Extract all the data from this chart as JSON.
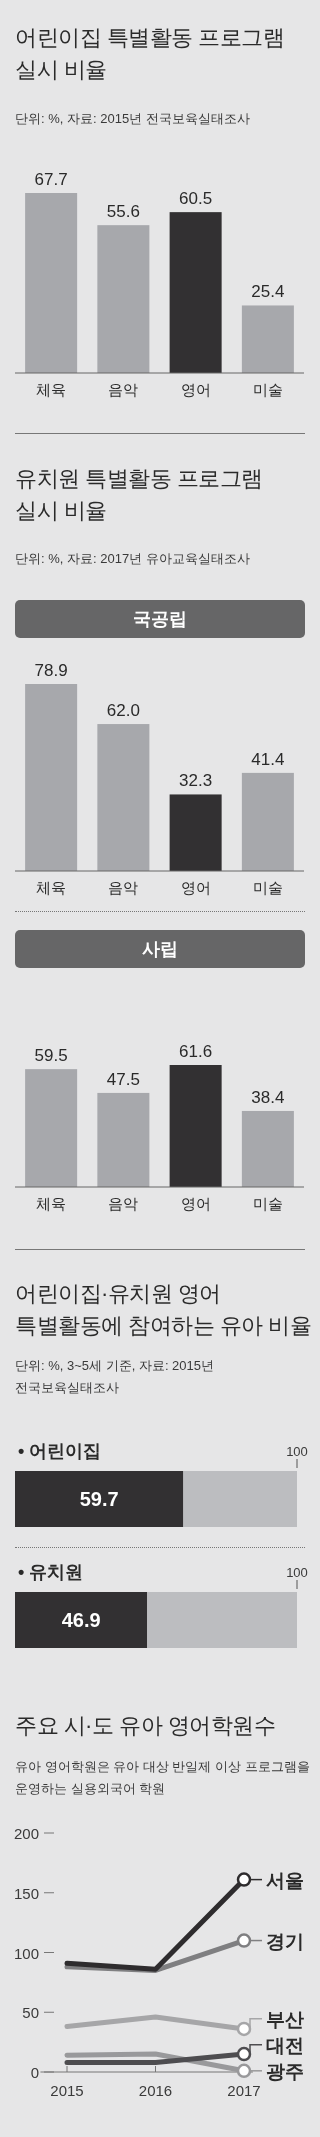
{
  "chart_data": [
    {
      "type": "bar",
      "title": "어린이집 특별활동 프로그램 실시 비율",
      "subtitle": "단위: %, 자료: 2015년 전국보육실태조사",
      "categories": [
        "체육",
        "음악",
        "영어",
        "미술"
      ],
      "values": [
        67.7,
        55.6,
        60.5,
        25.4
      ],
      "colors": [
        "#a7a8ac",
        "#a7a8ac",
        "#323032",
        "#a7a8ac"
      ],
      "data_labels": true
    },
    {
      "type": "bar",
      "title": "유치원 특별활동 프로그램 실시 비율",
      "subtitle": "단위: %, 자료: 2017년 유아교육실태조사",
      "annotations": [
        "국공립"
      ],
      "categories": [
        "체육",
        "음악",
        "영어",
        "미술"
      ],
      "values": [
        78.9,
        62.0,
        32.3,
        41.4
      ],
      "colors": [
        "#a7a8ac",
        "#a7a8ac",
        "#323032",
        "#a7a8ac"
      ],
      "value_labels": [
        "78.9",
        "62.0",
        "32.3",
        "41.4"
      ]
    },
    {
      "type": "bar",
      "title": "사립",
      "categories": [
        "체육",
        "음악",
        "영어",
        "미술"
      ],
      "values": [
        59.5,
        47.5,
        61.6,
        38.4
      ],
      "colors": [
        "#a7a8ac",
        "#a7a8ac",
        "#323032",
        "#a7a8ac"
      ],
      "data_labels": true
    },
    {
      "type": "bar",
      "orientation": "horizontal",
      "title": "어린이집·유치원 영어 특별활동에 참여하는 유아 비율",
      "subtitle": "단위: %, 3~5세 기준, 자료: 2015년 전국보육실태조사",
      "annotations": [
        "• 어린이집",
        "100"
      ],
      "categories": [
        null
      ],
      "stacked": true,
      "series": [
        {
          "color": "#323032",
          "values": [
            59.7
          ],
          "value_labels": [
            "59.7"
          ]
        },
        {
          "color": "#bcbdc0",
          "values": [
            40.3
          ]
        }
      ]
    },
    {
      "type": "bar",
      "orientation": "horizontal",
      "title": "• 유치원",
      "annotations": [
        "100"
      ],
      "categories": [
        null
      ],
      "stacked": true,
      "series": [
        {
          "color": "#323032",
          "values": [
            46.9
          ],
          "value_labels": [
            "46.9"
          ]
        },
        {
          "color": "#bcbdc0",
          "values": [
            53.1
          ]
        }
      ]
    },
    {
      "type": "line",
      "title": "주요 시·도 유아 영어학원수",
      "subtitle": "유아 영어학원은 유아 대상 반일제 이상 프로그램을 운영하는 실용외국어 학원",
      "x": [
        2015,
        2016,
        2017
      ],
      "xlim": [
        2014.7,
        2017.1
      ],
      "xticks": [
        2015,
        2016,
        2017
      ],
      "ylim": [
        0,
        200
      ],
      "yticks": [
        0,
        50,
        100,
        150,
        200
      ],
      "grid": false,
      "legend": "right",
      "line_style": "solid",
      "series": [
        {
          "name": "서울",
          "color": "#2e2c2e",
          "values": [
            91,
            86,
            161
          ]
        },
        {
          "name": "경기",
          "color": "#7f7f81",
          "values": [
            88,
            85,
            110
          ]
        },
        {
          "name": "부산",
          "color": "#a6a6a8",
          "values": [
            38,
            46,
            36
          ]
        },
        {
          "name": "대전",
          "color": "#4e4d50",
          "values": [
            8,
            8,
            15
          ]
        },
        {
          "name": "광주",
          "color": "#99999b",
          "values": [
            14,
            15,
            1
          ]
        }
      ]
    }
  ]
}
